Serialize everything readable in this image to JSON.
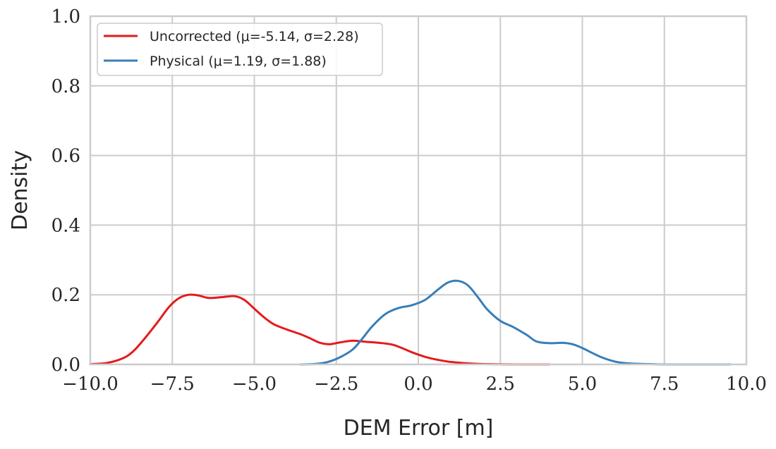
{
  "chart_data": {
    "type": "line",
    "xlabel": "DEM Error [m]",
    "ylabel": "Density",
    "xlim": [
      -10.0,
      10.0
    ],
    "ylim": [
      0.0,
      1.0
    ],
    "xticks": [
      "−10.0",
      "−7.5",
      "−5.0",
      "−2.5",
      "0.0",
      "2.5",
      "5.0",
      "7.5",
      "10.0"
    ],
    "yticks": [
      "0.0",
      "0.2",
      "0.4",
      "0.6",
      "0.8",
      "1.0"
    ],
    "grid": true,
    "legend_position": "top-left",
    "series": [
      {
        "name": "Uncorrected (μ=-5.14, σ=2.28)",
        "color": "#e41a1c",
        "x": [
          -10.0,
          -9.5,
          -9.0,
          -8.7,
          -8.4,
          -8.0,
          -7.6,
          -7.3,
          -7.0,
          -6.7,
          -6.4,
          -6.0,
          -5.6,
          -5.3,
          -5.0,
          -4.7,
          -4.4,
          -4.0,
          -3.6,
          -3.3,
          -3.0,
          -2.7,
          -2.4,
          -2.0,
          -1.6,
          -1.2,
          -0.8,
          -0.5,
          -0.2,
          0.2,
          0.6,
          1.0,
          1.5,
          2.0,
          3.0,
          4.0
        ],
        "y": [
          0.001,
          0.004,
          0.018,
          0.037,
          0.068,
          0.115,
          0.165,
          0.19,
          0.2,
          0.198,
          0.191,
          0.193,
          0.196,
          0.185,
          0.16,
          0.135,
          0.115,
          0.1,
          0.087,
          0.075,
          0.062,
          0.058,
          0.063,
          0.068,
          0.065,
          0.062,
          0.057,
          0.047,
          0.035,
          0.022,
          0.013,
          0.007,
          0.003,
          0.001,
          0.0,
          0.0
        ]
      },
      {
        "name": "Physical (μ=1.19, σ=1.88)",
        "color": "#377eb8",
        "x": [
          -3.6,
          -3.2,
          -2.8,
          -2.4,
          -2.0,
          -1.7,
          -1.4,
          -1.0,
          -0.6,
          -0.2,
          0.2,
          0.6,
          0.9,
          1.2,
          1.5,
          1.8,
          2.1,
          2.5,
          2.9,
          3.3,
          3.6,
          4.0,
          4.4,
          4.7,
          5.0,
          5.3,
          5.6,
          6.0,
          6.4,
          7.0,
          7.5,
          8.0,
          9.0,
          9.5
        ],
        "y": [
          0.0,
          0.001,
          0.006,
          0.02,
          0.043,
          0.075,
          0.11,
          0.145,
          0.162,
          0.17,
          0.185,
          0.215,
          0.235,
          0.24,
          0.228,
          0.195,
          0.158,
          0.125,
          0.107,
          0.085,
          0.066,
          0.061,
          0.062,
          0.058,
          0.047,
          0.033,
          0.02,
          0.008,
          0.003,
          0.001,
          0.0,
          0.0,
          0.0,
          0.0
        ]
      }
    ]
  }
}
